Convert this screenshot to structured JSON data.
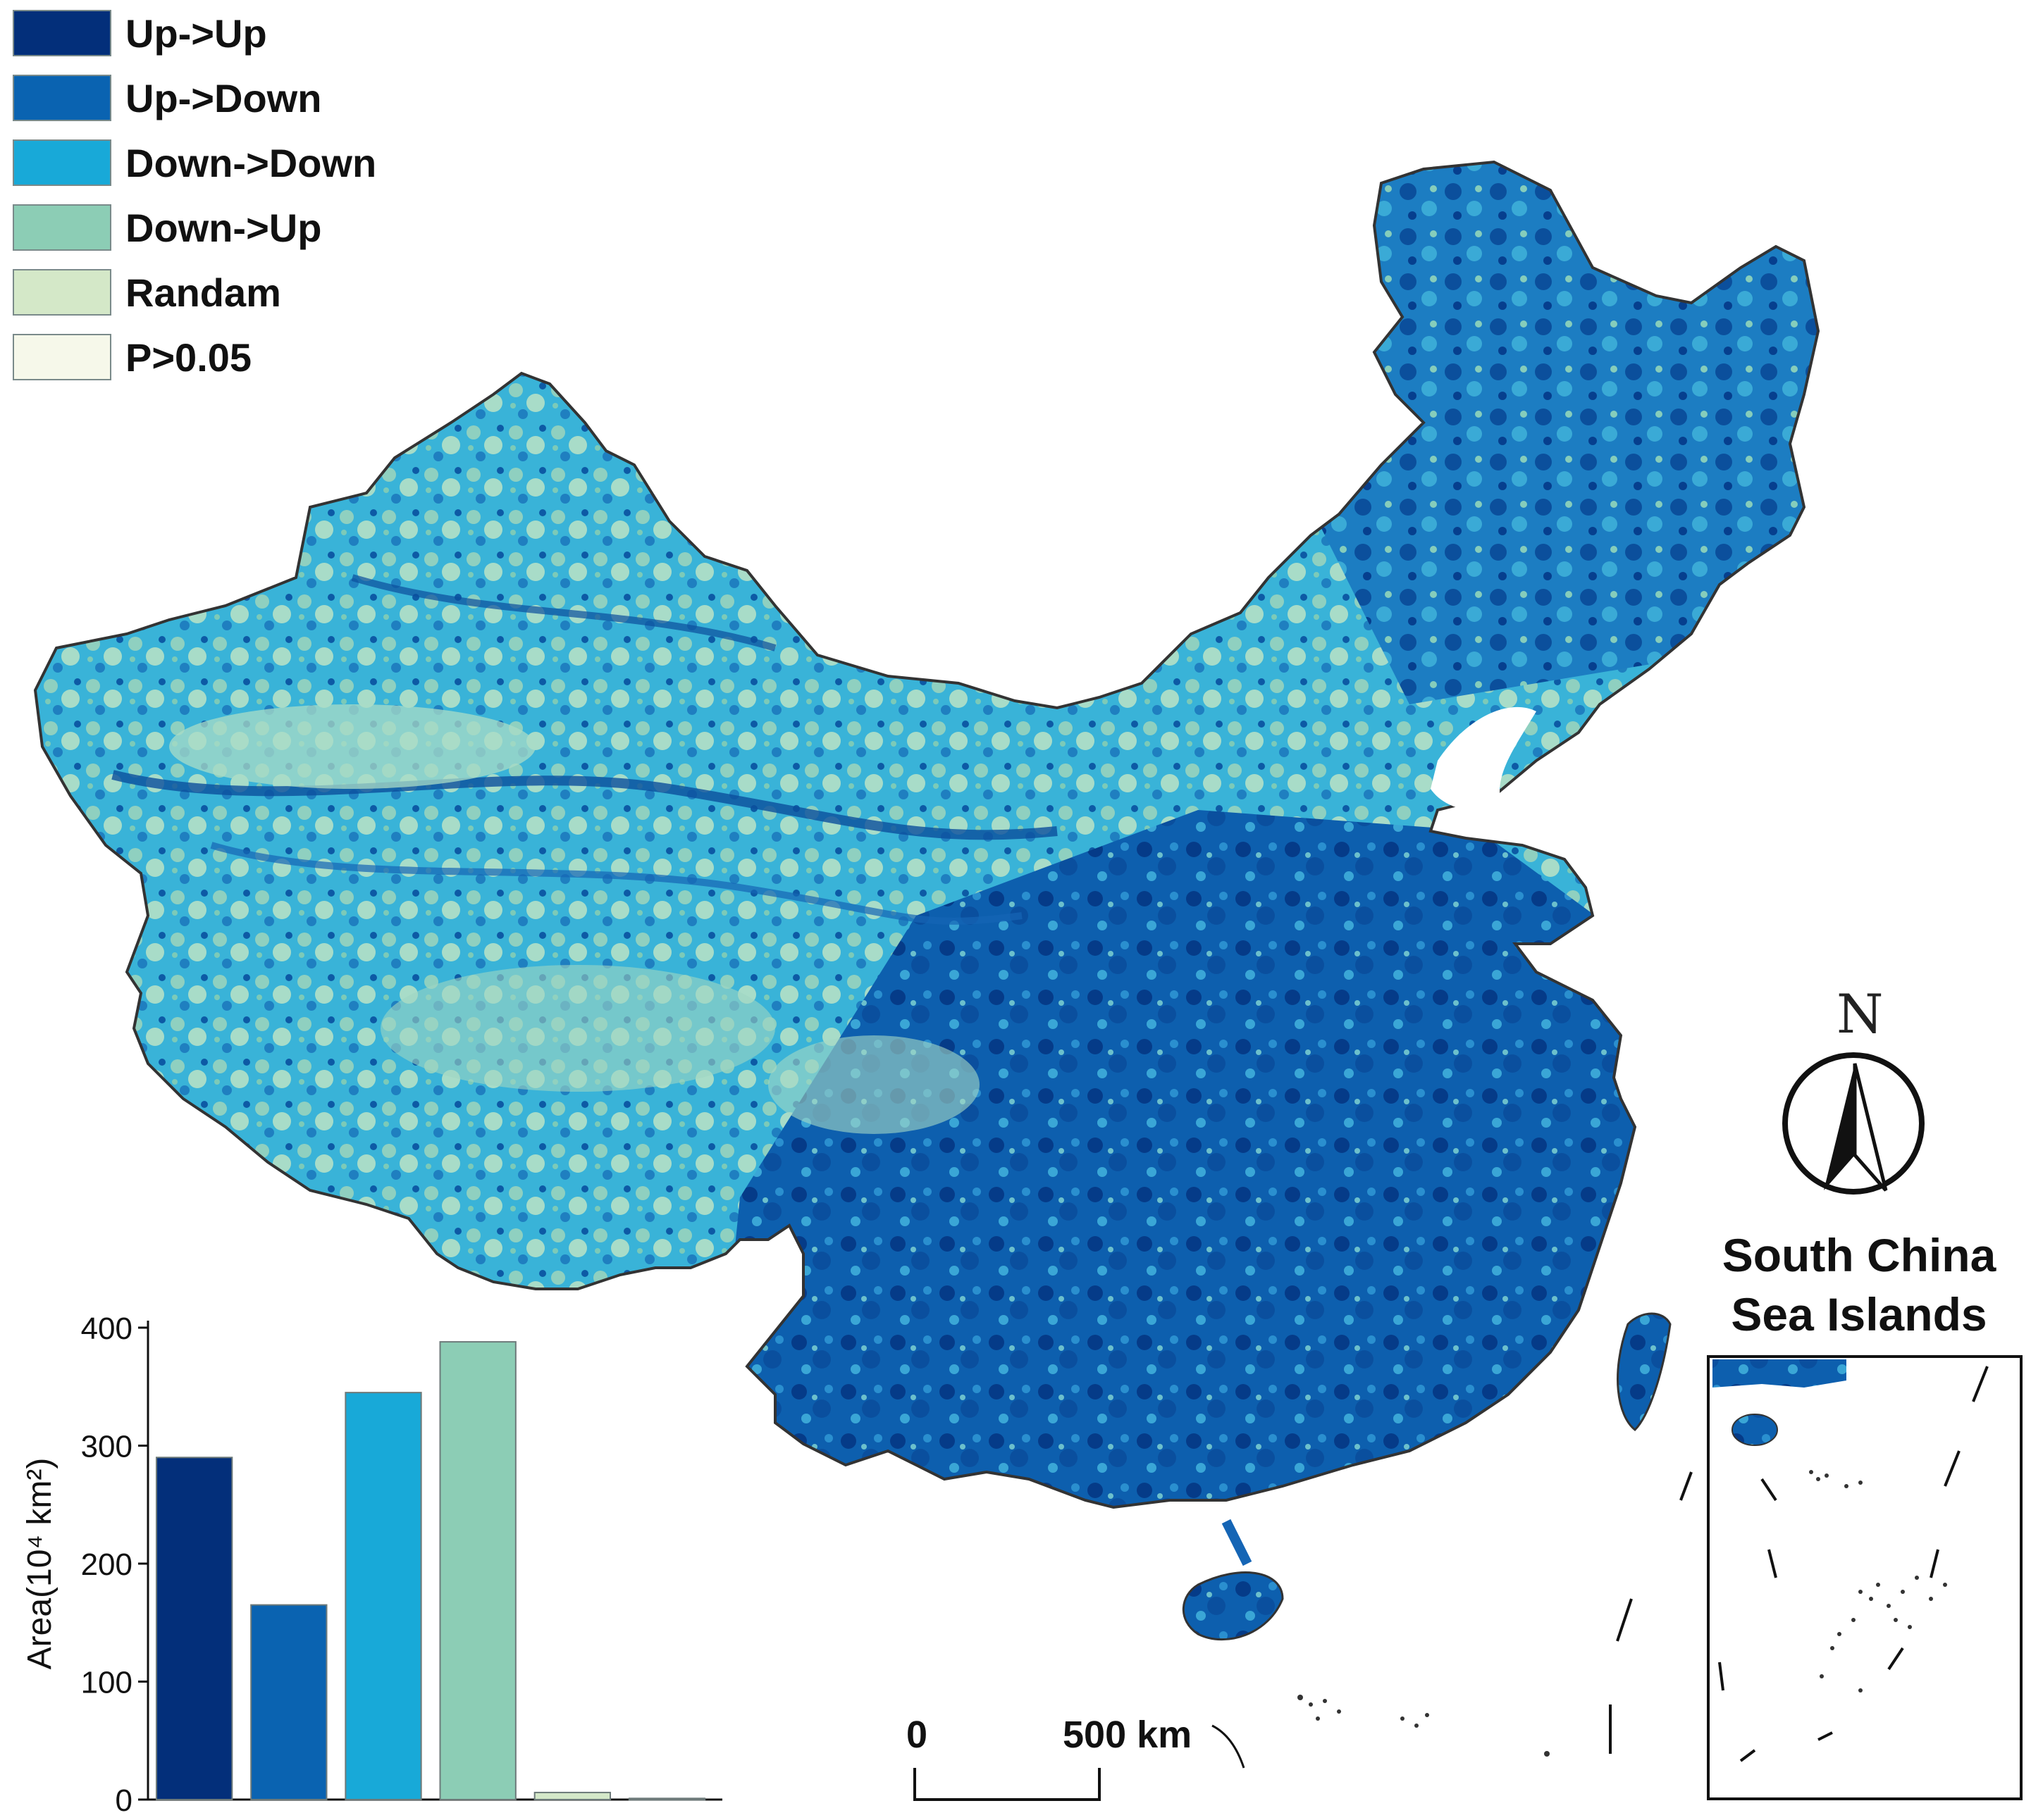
{
  "legend": {
    "items": [
      {
        "label": "Up->Up",
        "color": "#032f7a"
      },
      {
        "label": "Up->Down",
        "color": "#0a63b1"
      },
      {
        "label": "Down->Down",
        "color": "#18a9d8"
      },
      {
        "label": "Down->Up",
        "color": "#8ccdb5"
      },
      {
        "label": "Randam",
        "color": "#d4e8c8"
      },
      {
        "label": "P>0.05",
        "color": "#f6f8ea"
      }
    ]
  },
  "map": {
    "inset_title": "South China\nSea Islands",
    "north_label": "N",
    "scale_start": "0",
    "scale_end": "500 km",
    "icons": [
      "north-arrow-icon",
      "scale-bar-icon"
    ]
  },
  "chart_data": {
    "type": "bar",
    "categories": [
      "Up->Up",
      "Up->Down",
      "Down->Down",
      "Down->Up",
      "Randam",
      "P>0.05"
    ],
    "values": [
      290,
      165,
      345,
      388,
      6,
      1
    ],
    "colors": [
      "#032f7a",
      "#0a63b1",
      "#18a9d8",
      "#8ccdb5",
      "#d4e8c8",
      "#f6f8ea"
    ],
    "ylabel": "Area(10⁴ km²)",
    "ylim": [
      0,
      400
    ],
    "yticks": [
      "0",
      "100",
      "200",
      "300",
      "400"
    ],
    "show_xtick_labels": false
  }
}
